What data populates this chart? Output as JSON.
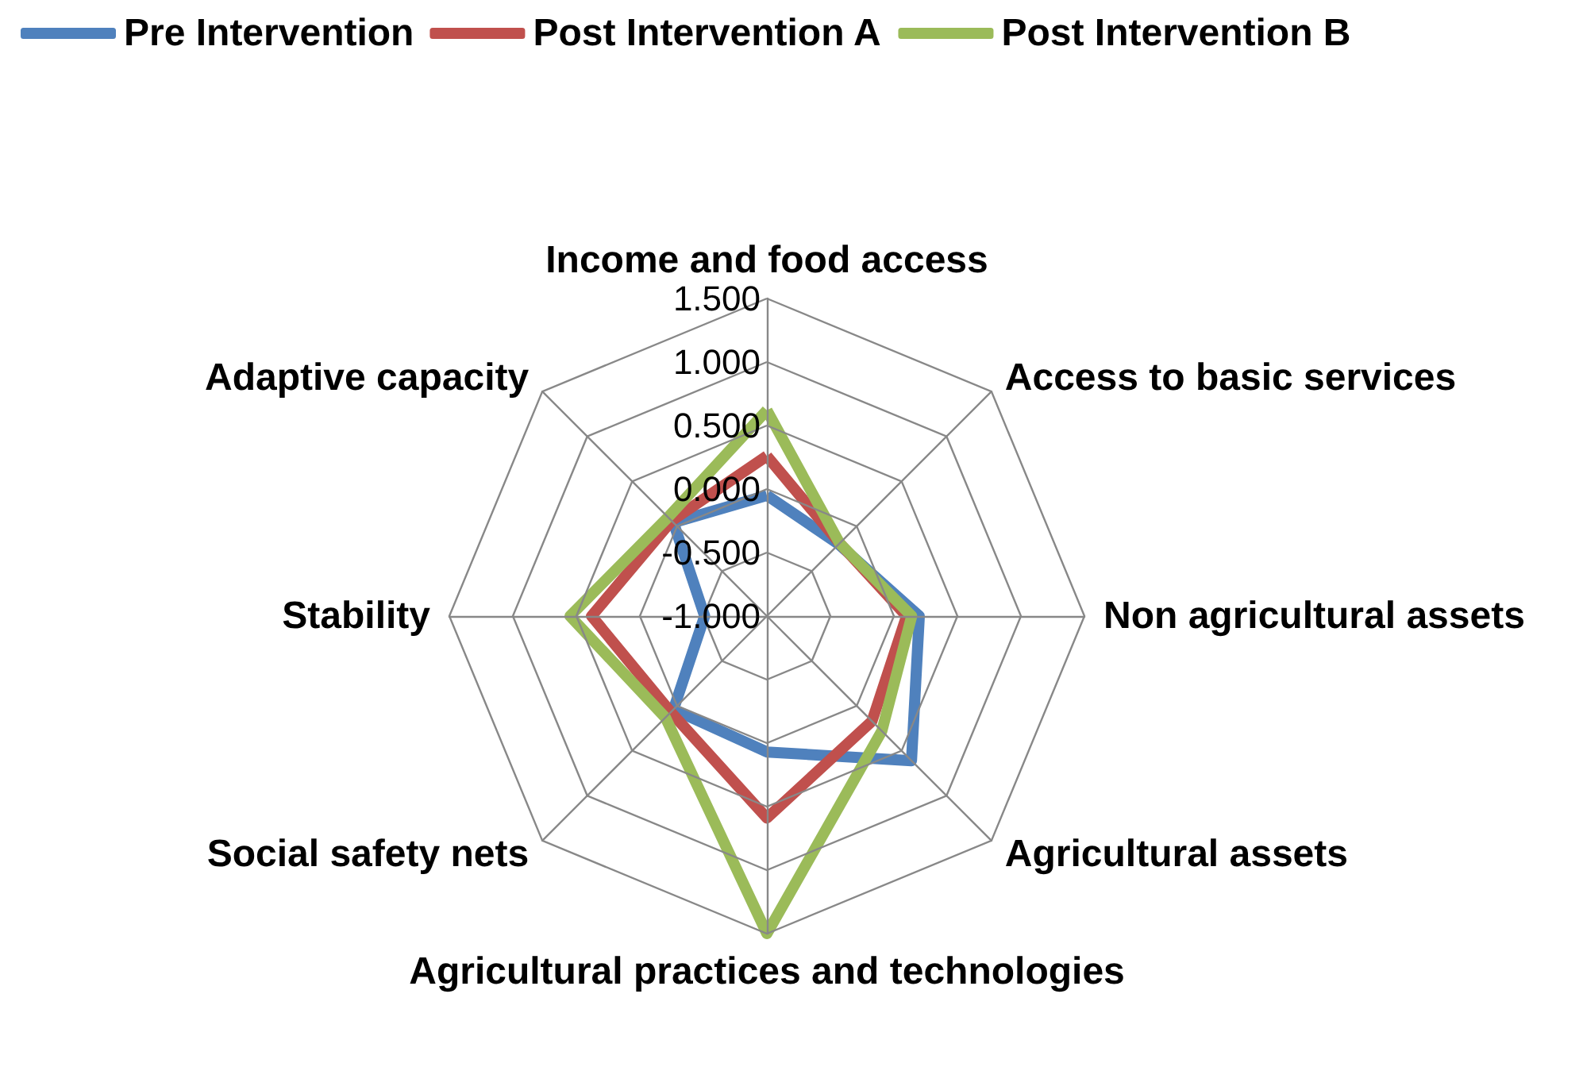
{
  "chart_data": {
    "type": "radar",
    "categories": [
      "Income and food access",
      "Access to basic services",
      "Non agricultural assets",
      "Agricultural assets",
      "Agricultural practices and technologies",
      "Social safety nets",
      "Stability",
      "Adaptive capacity"
    ],
    "series": [
      {
        "name": "Pre Intervention",
        "color": "#4f81bd",
        "values": [
          -0.05,
          -0.2,
          0.2,
          0.61,
          0.07,
          0.04,
          -0.51,
          0.04
        ]
      },
      {
        "name": "Post Intervention A",
        "color": "#c0504d",
        "values": [
          0.26,
          -0.19,
          0.1,
          0.17,
          0.59,
          0.07,
          0.38,
          0.06
        ]
      },
      {
        "name": "Post Intervention B",
        "color": "#9bbb59",
        "values": [
          0.62,
          -0.19,
          0.14,
          0.28,
          1.5,
          0.13,
          0.55,
          0.1
        ]
      }
    ],
    "ylim": [
      -1,
      1.5
    ],
    "yticks": [
      {
        "value": -1,
        "label": "-1.000"
      },
      {
        "value": -0.5,
        "label": "-0.500"
      },
      {
        "value": 0,
        "label": "0.000"
      },
      {
        "value": 0.5,
        "label": "0.500"
      },
      {
        "value": 1,
        "label": "1.000"
      },
      {
        "value": 1.5,
        "label": "1.500"
      }
    ],
    "legend": "top left",
    "marker": "none"
  }
}
